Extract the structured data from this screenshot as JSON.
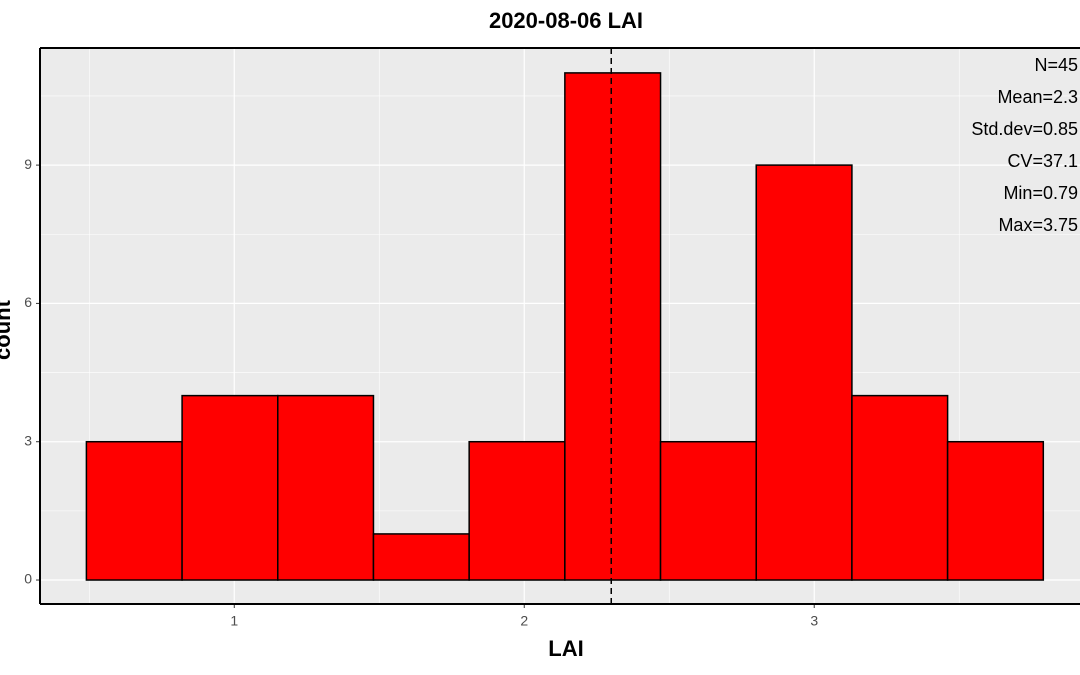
{
  "chart_data": {
    "type": "histogram",
    "title": "2020-08-06 LAI",
    "x_label": "LAI",
    "y_label": "count",
    "bins": [
      0.49,
      0.82,
      1.15,
      1.48,
      1.81,
      2.14,
      2.47,
      2.8,
      3.13,
      3.46,
      3.79
    ],
    "values": [
      3,
      4,
      4,
      1,
      3,
      11,
      3,
      9,
      4,
      3
    ],
    "color": "#ff0000",
    "edge_color": "#000000",
    "mean": 2.3,
    "xlim": [
      0.33,
      3.92
    ],
    "xticks": [
      1,
      2,
      3
    ],
    "xminor": [
      0.5,
      1.5,
      2.5,
      3.5
    ],
    "ylim": [
      -0.52,
      11.54
    ],
    "yticks": [
      0,
      3,
      6,
      9
    ],
    "yminor": [
      1.5,
      4.5,
      7.5,
      10.5
    ],
    "grid": true,
    "annotations": [
      "N=45",
      "Mean=2.3",
      "Std.dev=0.85",
      "CV=37.1",
      "Min=0.79",
      "Max=3.75"
    ]
  }
}
